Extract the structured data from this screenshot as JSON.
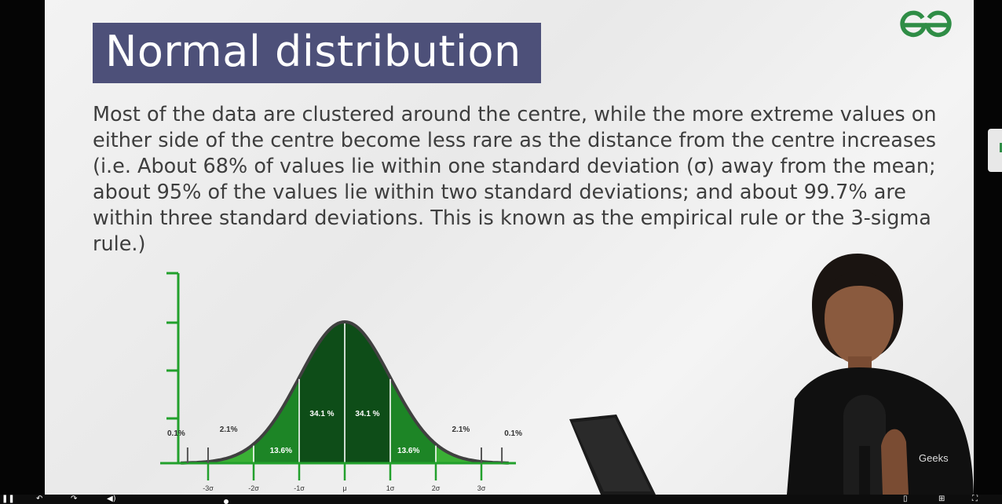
{
  "slide": {
    "title": "Normal distribution",
    "paragraph": "Most of the data are clustered around the centre, while the more extreme values on either side of the centre become less rare as the distance from the centre increases (i.e. About 68% of values lie within one standard deviation (σ) away from the mean; about 95% of the values lie within two standard deviations; and about 99.7% are within three standard deviations. This is known as the empirical rule or the 3-sigma rule.)",
    "presenter_shirt_text": "Geeks"
  },
  "chart_data": {
    "type": "area",
    "x": [
      "-3σ",
      "-2σ",
      "-1σ",
      "μ",
      "1σ",
      "2σ",
      "3σ"
    ],
    "region_labels": [
      "0.1%",
      "2.1%",
      "13.6%",
      "34.1 %",
      "34.1 %",
      "13.6%",
      "2.1%",
      "0.1%"
    ],
    "region_values": [
      0.1,
      2.1,
      13.6,
      34.1,
      34.1,
      13.6,
      2.1,
      0.1
    ],
    "colors": {
      "center": "#0e4d18",
      "mid": "#1d8526",
      "outer": "#3ab035",
      "curve": "#404040",
      "axis": "#22a02c"
    }
  },
  "player": {
    "icons": [
      "pause-icon",
      "rewind-icon",
      "forward-icon",
      "volume-icon",
      "file-icon",
      "add-icon",
      "fullscreen-icon"
    ]
  }
}
